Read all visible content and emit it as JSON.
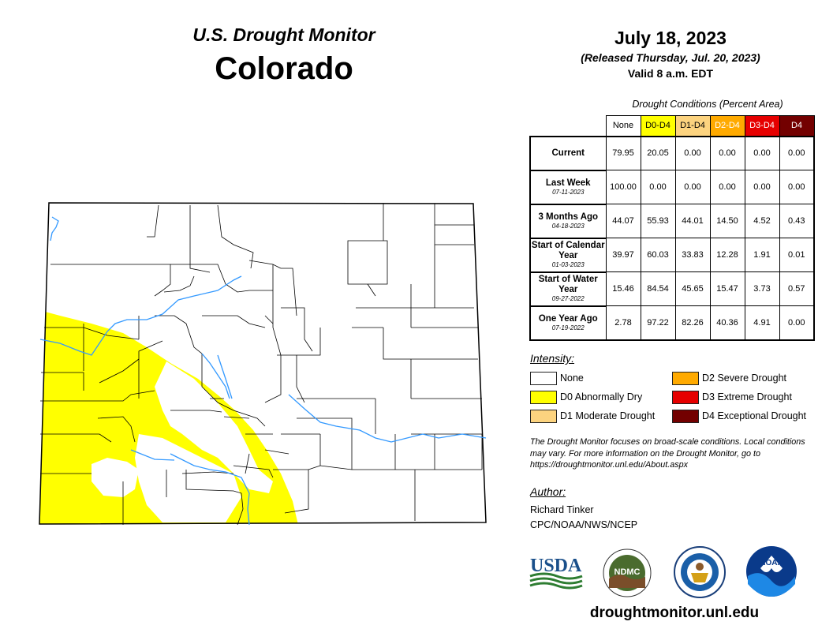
{
  "header": {
    "monitor_title": "U.S. Drought Monitor",
    "state": "Colorado",
    "date": "July 18, 2023",
    "released": "(Released Thursday, Jul. 20, 2023)",
    "valid": "Valid 8 a.m. EDT"
  },
  "table": {
    "caption": "Drought Conditions (Percent Area)",
    "columns": [
      "None",
      "D0-D4",
      "D1-D4",
      "D2-D4",
      "D3-D4",
      "D4"
    ],
    "rows": [
      {
        "label": "Current",
        "date": "",
        "values": [
          "79.95",
          "20.05",
          "0.00",
          "0.00",
          "0.00",
          "0.00"
        ]
      },
      {
        "label": "Last Week",
        "date": "07-11-2023",
        "values": [
          "100.00",
          "0.00",
          "0.00",
          "0.00",
          "0.00",
          "0.00"
        ]
      },
      {
        "label": "3 Months Ago",
        "date": "04-18-2023",
        "values": [
          "44.07",
          "55.93",
          "44.01",
          "14.50",
          "4.52",
          "0.43"
        ]
      },
      {
        "label": "Start of Calendar Year",
        "date": "01-03-2023",
        "values": [
          "39.97",
          "60.03",
          "33.83",
          "12.28",
          "1.91",
          "0.01"
        ]
      },
      {
        "label": "Start of Water Year",
        "date": "09-27-2022",
        "values": [
          "15.46",
          "84.54",
          "45.65",
          "15.47",
          "3.73",
          "0.57"
        ]
      },
      {
        "label": "One Year Ago",
        "date": "07-19-2022",
        "values": [
          "2.78",
          "97.22",
          "82.26",
          "40.36",
          "4.91",
          "0.00"
        ]
      }
    ]
  },
  "legend": {
    "title": "Intensity:",
    "items": [
      {
        "label": "None",
        "color": "#ffffff"
      },
      {
        "label": "D0 Abnormally Dry",
        "color": "#ffff00"
      },
      {
        "label": "D1 Moderate Drought",
        "color": "#fcd37f"
      },
      {
        "label": "D2 Severe Drought",
        "color": "#ffaa00"
      },
      {
        "label": "D3 Extreme Drought",
        "color": "#e60000"
      },
      {
        "label": "D4 Exceptional Drought",
        "color": "#730000"
      }
    ]
  },
  "column_colors": [
    "#ffffff",
    "#ffff00",
    "#fcd37f",
    "#ffaa00",
    "#e60000",
    "#730000"
  ],
  "column_text_colors": [
    "#000000",
    "#000000",
    "#000000",
    "#ffffff",
    "#ffffff",
    "#ffffff"
  ],
  "disclaimer": "The Drought Monitor focuses on broad-scale conditions. Local conditions may vary. For more information on the Drought Monitor, go to https://droughtmonitor.unl.edu/About.aspx",
  "author": {
    "title": "Author:",
    "name": "Richard Tinker",
    "org": "CPC/NOAA/NWS/NCEP"
  },
  "logos": {
    "usda": "USDA",
    "ndmc": "NDMC",
    "noaa": "NOAA"
  },
  "site_url": "droughtmonitor.unl.edu",
  "map_colors": {
    "drought_fill": "#ffff00",
    "river": "#3399ff",
    "county_line": "#000000"
  }
}
